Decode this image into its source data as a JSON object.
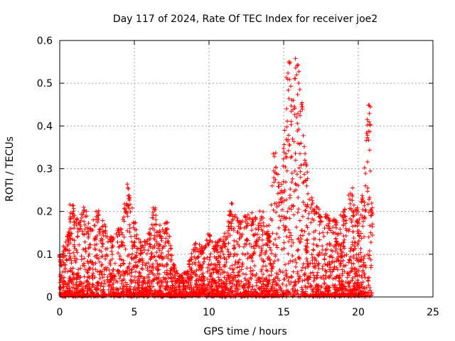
{
  "chart_data": {
    "type": "scatter",
    "title": "Day 117 of 2024, Rate Of TEC Index for receiver joe2",
    "xlabel": "GPS time / hours",
    "ylabel": "ROTI / TECUs",
    "xlim": [
      0,
      25
    ],
    "ylim": [
      0,
      0.6
    ],
    "xticks": [
      "0",
      "5",
      "10",
      "15",
      "20",
      "25"
    ],
    "yticks": [
      "0",
      "0.1",
      "0.2",
      "0.3",
      "0.4",
      "0.5",
      "0.6"
    ],
    "grid": true,
    "marker": "+",
    "color": "#ff0000",
    "envelope": [
      {
        "x": 0.0,
        "y": 0.1
      },
      {
        "x": 0.3,
        "y": 0.12
      },
      {
        "x": 0.6,
        "y": 0.16
      },
      {
        "x": 0.8,
        "y": 0.22
      },
      {
        "x": 1.0,
        "y": 0.2
      },
      {
        "x": 1.3,
        "y": 0.18
      },
      {
        "x": 1.7,
        "y": 0.22
      },
      {
        "x": 2.0,
        "y": 0.17
      },
      {
        "x": 2.5,
        "y": 0.21
      },
      {
        "x": 3.0,
        "y": 0.17
      },
      {
        "x": 3.5,
        "y": 0.14
      },
      {
        "x": 4.0,
        "y": 0.16
      },
      {
        "x": 4.4,
        "y": 0.22
      },
      {
        "x": 4.6,
        "y": 0.27
      },
      {
        "x": 5.0,
        "y": 0.18
      },
      {
        "x": 5.5,
        "y": 0.12
      },
      {
        "x": 6.0,
        "y": 0.15
      },
      {
        "x": 6.3,
        "y": 0.21
      },
      {
        "x": 6.8,
        "y": 0.16
      },
      {
        "x": 7.2,
        "y": 0.18
      },
      {
        "x": 7.6,
        "y": 0.08
      },
      {
        "x": 8.0,
        "y": 0.05
      },
      {
        "x": 8.5,
        "y": 0.06
      },
      {
        "x": 9.0,
        "y": 0.13
      },
      {
        "x": 9.5,
        "y": 0.12
      },
      {
        "x": 10.0,
        "y": 0.15
      },
      {
        "x": 10.5,
        "y": 0.13
      },
      {
        "x": 11.0,
        "y": 0.14
      },
      {
        "x": 11.5,
        "y": 0.22
      },
      {
        "x": 12.0,
        "y": 0.18
      },
      {
        "x": 12.5,
        "y": 0.2
      },
      {
        "x": 13.0,
        "y": 0.2
      },
      {
        "x": 13.5,
        "y": 0.21
      },
      {
        "x": 14.0,
        "y": 0.16
      },
      {
        "x": 14.4,
        "y": 0.34
      },
      {
        "x": 14.8,
        "y": 0.27
      },
      {
        "x": 15.1,
        "y": 0.4
      },
      {
        "x": 15.3,
        "y": 0.56
      },
      {
        "x": 15.6,
        "y": 0.48
      },
      {
        "x": 15.9,
        "y": 0.57
      },
      {
        "x": 16.2,
        "y": 0.46
      },
      {
        "x": 16.5,
        "y": 0.32
      },
      {
        "x": 17.0,
        "y": 0.22
      },
      {
        "x": 17.5,
        "y": 0.2
      },
      {
        "x": 18.0,
        "y": 0.19
      },
      {
        "x": 18.5,
        "y": 0.18
      },
      {
        "x": 19.0,
        "y": 0.2
      },
      {
        "x": 19.5,
        "y": 0.26
      },
      {
        "x": 20.0,
        "y": 0.2
      },
      {
        "x": 20.3,
        "y": 0.24
      },
      {
        "x": 20.6,
        "y": 0.42
      },
      {
        "x": 20.8,
        "y": 0.45
      },
      {
        "x": 20.95,
        "y": 0.2
      }
    ],
    "x_range_data": [
      0,
      20.95
    ],
    "sample_count": 3200
  }
}
